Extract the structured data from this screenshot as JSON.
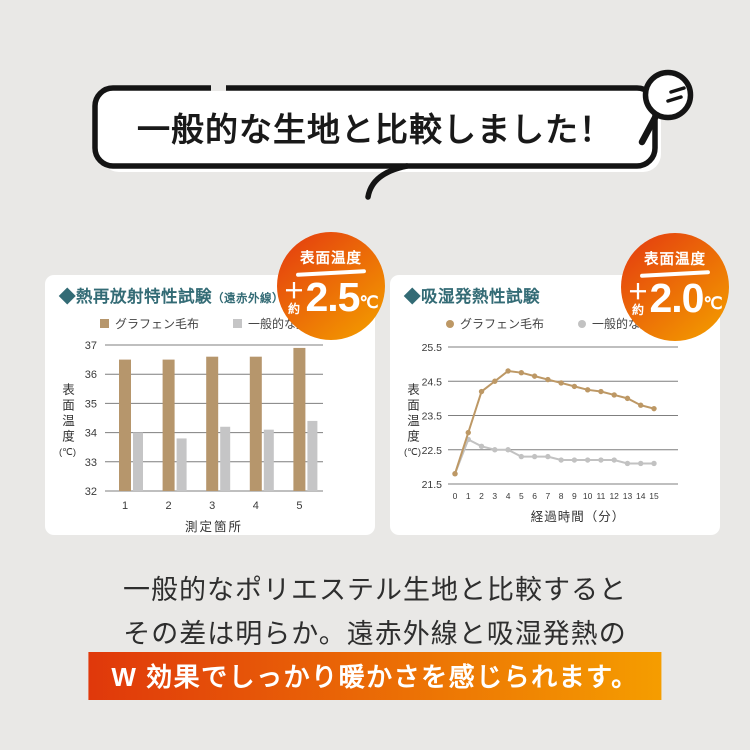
{
  "theme": {
    "page_bg": "#e9e8e6",
    "teal": "#336b75",
    "badge_gradient": [
      "#e5410f",
      "#f29500"
    ],
    "highlight_gradient": [
      "#e0380b",
      "#f59d00"
    ],
    "graphene_bar_color": "#b6966c",
    "common_bar_color": "#c5c5c6",
    "graphene_line_color": "#bd9865",
    "common_line_color": "#c2c2c2",
    "gridline_color": "#7f7f7f"
  },
  "bubble": {
    "title": "一般的な生地と比較しました！"
  },
  "panels": [
    {
      "title": "◆熱再放射特性試験",
      "title_suffix": "（遠赤外線）",
      "badge": {
        "label": "表面温度",
        "plus": "＋",
        "approx": "約",
        "value": "2.5",
        "unit": "℃"
      },
      "legend": [
        {
          "label": "グラフェン毛布"
        },
        {
          "label": "一般的な生地"
        }
      ],
      "ylabel": "表面温度",
      "ylabel_unit": "(℃)"
    },
    {
      "title": "◆吸湿発熱性試験",
      "title_suffix": "",
      "badge": {
        "label": "表面温度",
        "plus": "＋",
        "approx": "約",
        "value": "2.0",
        "unit": "℃"
      },
      "legend": [
        {
          "label": "グラフェン毛布"
        },
        {
          "label": "一般的な生地"
        }
      ],
      "ylabel": "表面温度",
      "ylabel_unit": "(℃)"
    }
  ],
  "chart_data": [
    {
      "type": "bar",
      "title": "熱再放射特性試験（遠赤外線）",
      "categories": [
        "1",
        "2",
        "3",
        "4",
        "5"
      ],
      "series": [
        {
          "name": "グラフェン毛布",
          "color": "#b6966c",
          "values": [
            36.5,
            36.5,
            36.6,
            36.6,
            36.9
          ]
        },
        {
          "name": "一般的な生地",
          "color": "#c5c5c6",
          "values": [
            34.0,
            33.8,
            34.2,
            34.1,
            34.4
          ]
        }
      ],
      "xlabel": "測定箇所",
      "ylabel": "表面温度(℃)",
      "ylim": [
        32,
        37
      ],
      "yticks": [
        32,
        33,
        34,
        35,
        36,
        37
      ],
      "grid": true,
      "legend_position": "top"
    },
    {
      "type": "line",
      "title": "吸湿発熱性試験",
      "x": [
        0,
        1,
        2,
        3,
        4,
        5,
        6,
        7,
        8,
        9,
        10,
        11,
        12,
        13,
        14,
        15
      ],
      "series": [
        {
          "name": "グラフェン毛布",
          "color": "#bd9865",
          "values": [
            21.8,
            23.0,
            24.2,
            24.5,
            24.8,
            24.75,
            24.65,
            24.55,
            24.45,
            24.35,
            24.25,
            24.2,
            24.1,
            24.0,
            23.8,
            23.7
          ]
        },
        {
          "name": "一般的な生地",
          "color": "#c2c2c2",
          "values": [
            21.8,
            22.8,
            22.6,
            22.5,
            22.5,
            22.3,
            22.3,
            22.3,
            22.2,
            22.2,
            22.2,
            22.2,
            22.2,
            22.1,
            22.1,
            22.1
          ]
        }
      ],
      "xlabel": "経過時間（分）",
      "ylabel": "表面温度(℃)",
      "ylim": [
        21.5,
        25.5
      ],
      "yticks": [
        21.5,
        22.5,
        23.5,
        24.5,
        25.5
      ],
      "grid": true,
      "legend_position": "top"
    }
  ],
  "footer": {
    "line1": "一般的なポリエステル生地と比較すると",
    "line2": "その差は明らか。遠赤外線と吸湿発熱の",
    "highlight": "W 効果でしっかり暖かさを感じられます。"
  }
}
